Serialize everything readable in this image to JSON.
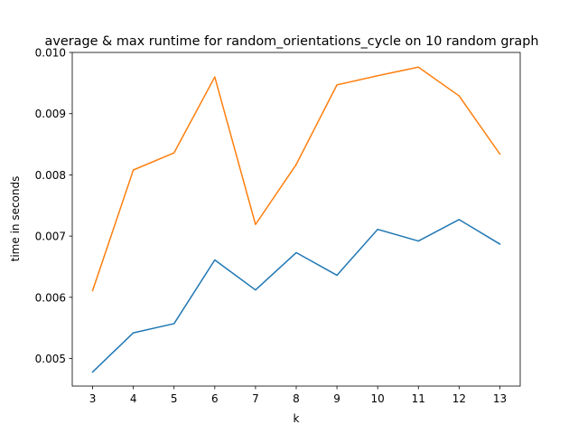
{
  "chart_data": {
    "type": "line",
    "title": "average & max runtime for random_orientations_cycle on 10 random graph",
    "xlabel": "k",
    "ylabel": "time in seconds",
    "x": [
      3,
      4,
      5,
      6,
      7,
      8,
      9,
      10,
      11,
      12,
      13
    ],
    "xlim": [
      2.5,
      13.5
    ],
    "ylim": [
      0.00455,
      0.01
    ],
    "yticks": [
      "0.005",
      "0.006",
      "0.007",
      "0.008",
      "0.009",
      "0.010"
    ],
    "grid": false,
    "series": [
      {
        "color": "#1f77b4",
        "values": [
          0.00478,
          0.00542,
          0.00557,
          0.00661,
          0.00612,
          0.00673,
          0.00636,
          0.00711,
          0.00692,
          0.00727,
          0.00687
        ]
      },
      {
        "color": "#ff7f0e",
        "values": [
          0.00611,
          0.00808,
          0.00836,
          0.0096,
          0.00719,
          0.00817,
          0.00947,
          0.00962,
          0.00976,
          0.00929,
          0.00834
        ]
      }
    ]
  }
}
